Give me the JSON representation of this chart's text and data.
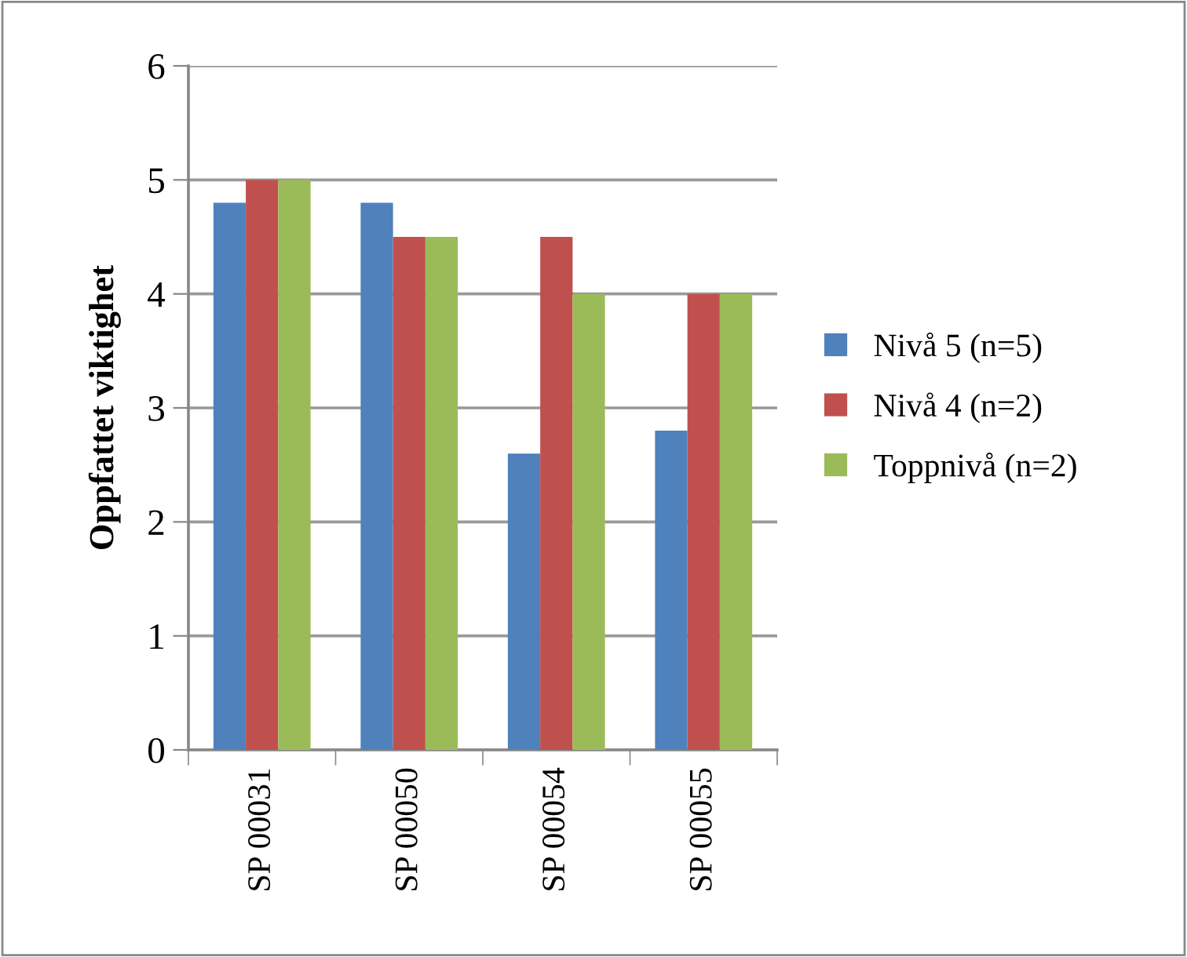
{
  "chart_data": {
    "type": "bar",
    "ylabel": "Oppfattet viktighet",
    "categories": [
      "SP 00031",
      "SP 00050",
      "SP 00054",
      "SP 00055"
    ],
    "series": [
      {
        "name": "Nivå 5 (n=5)",
        "color": "#4f81bd",
        "values": [
          4.8,
          4.8,
          2.6,
          2.8
        ]
      },
      {
        "name": "Nivå 4 (n=2)",
        "color": "#c0504d",
        "values": [
          5,
          4.5,
          4.5,
          4
        ]
      },
      {
        "name": "Toppnivå (n=2)",
        "color": "#9bbb59",
        "values": [
          5,
          4.5,
          4,
          4
        ]
      }
    ],
    "ylim": [
      0,
      6
    ],
    "yticks": [
      0,
      1,
      2,
      3,
      4,
      5,
      6
    ],
    "grid": "y",
    "legend": "right"
  }
}
